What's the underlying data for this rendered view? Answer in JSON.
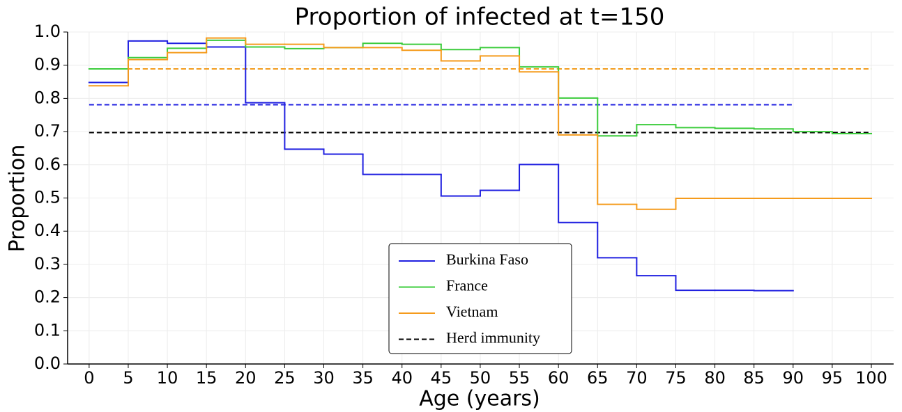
{
  "chart_data": {
    "type": "step",
    "title": "Proportion of infected at t=150",
    "xlabel": "Age (years)",
    "ylabel": "Proportion",
    "xlim": [
      -2.75,
      102.85
    ],
    "ylim": [
      0,
      1
    ],
    "xticks": [
      0,
      5,
      10,
      15,
      20,
      25,
      30,
      35,
      40,
      45,
      50,
      55,
      60,
      65,
      70,
      75,
      80,
      85,
      90,
      95,
      100
    ],
    "yticks": [
      {
        "value": 0,
        "label": "0.0"
      },
      0.1,
      0.2,
      0.3,
      0.4,
      0.5,
      0.6,
      0.7,
      0.8,
      0.9,
      {
        "value": 1,
        "label": "1.0"
      }
    ],
    "grid": true,
    "legend": "lower center",
    "series": [
      {
        "name": "Burkina Faso",
        "color": "#2020e0",
        "bins": [
          0,
          5,
          10,
          15,
          20,
          25,
          30,
          35,
          40,
          45,
          50,
          55,
          60,
          65,
          70,
          75,
          80,
          85,
          90
        ],
        "values": [
          0.848,
          0.973,
          0.966,
          0.955,
          0.787,
          0.647,
          0.632,
          0.571,
          0.571,
          0.506,
          0.523,
          0.601,
          0.426,
          0.32,
          0.266,
          0.222,
          0.222,
          0.221
        ]
      },
      {
        "name": "France",
        "color": "#3ccc3c",
        "bins": [
          0,
          5,
          10,
          15,
          20,
          25,
          30,
          35,
          40,
          45,
          50,
          55,
          60,
          65,
          70,
          75,
          80,
          85,
          90,
          95,
          100
        ],
        "values": [
          0.889,
          0.923,
          0.951,
          0.975,
          0.955,
          0.95,
          0.953,
          0.966,
          0.963,
          0.947,
          0.953,
          0.895,
          0.801,
          0.687,
          0.721,
          0.712,
          0.71,
          0.708,
          0.7,
          0.694
        ]
      },
      {
        "name": "Vietnam",
        "color": "#f59b1c",
        "bins": [
          0,
          5,
          10,
          15,
          20,
          25,
          30,
          35,
          40,
          45,
          50,
          55,
          60,
          65,
          70,
          75,
          80,
          85,
          90,
          95,
          100
        ],
        "values": [
          0.838,
          0.917,
          0.938,
          0.982,
          0.963,
          0.963,
          0.953,
          0.953,
          0.945,
          0.913,
          0.928,
          0.88,
          0.69,
          0.481,
          0.466,
          0.499,
          0.499,
          0.499,
          0.499,
          0.499
        ]
      }
    ],
    "reference_lines": [
      {
        "y": 0.781,
        "x": [
          0,
          90
        ],
        "color": "#2020e0"
      },
      {
        "y": 0.889,
        "x": [
          0,
          100
        ],
        "color": "#3ccc3c"
      },
      {
        "y": 0.889,
        "x": [
          0,
          100
        ],
        "color": "#f59b1c"
      },
      {
        "name": "Herd immunity",
        "y": 0.697,
        "x": [
          0,
          100
        ],
        "color": "#000000"
      }
    ]
  }
}
